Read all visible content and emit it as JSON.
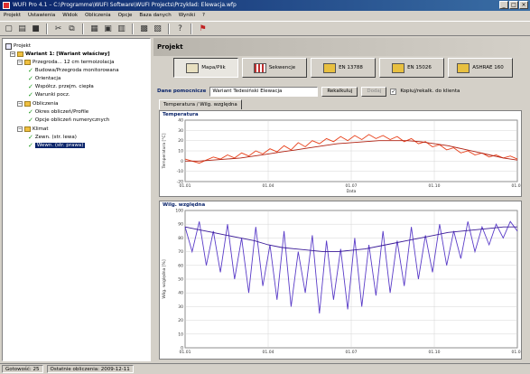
{
  "window": {
    "title": "WUFI Pro 4.1 – C:\\Programme\\WUFI Software\\WUFI Projects\\Przykład: Elewacja.wfp"
  },
  "menu": [
    "Projekt",
    "Ustawienia",
    "Widok",
    "Obliczenia",
    "Opcje",
    "Baza danych",
    "Wyniki",
    "?"
  ],
  "toolbar": [
    "new-icon",
    "open-icon",
    "save-icon",
    "cut-icon",
    "copy-icon",
    "paste-icon",
    "calc-icon",
    "chart-icon",
    "help-icon",
    "pin-icon"
  ],
  "tree": {
    "root": "Projekt",
    "case": "Wariant 1: [Wariant właściwy]",
    "construction": "Przegroda... 12 cm termoizolacja",
    "construction_items": [
      "Budowa/Przegroda monitorowana",
      "Orientacja",
      "Współcz. przejm. ciepła",
      "Warunki pocz."
    ],
    "calc": "Obliczenia",
    "calc_items": [
      "Okres obliczeń/Profile",
      "Opcje obliczeń numerycznych"
    ],
    "climate": "Klimat",
    "climate_items": [
      "Zewn. (str. lewa)",
      "Wewn. (str. prawa)"
    ]
  },
  "panel": {
    "title": "Projekt",
    "tabs": [
      "Mapa/Plik",
      "Sekwencje",
      "EN 13788",
      "EN 15026",
      "ASHRAE 160"
    ],
    "name_label": "Dane pomocnicze",
    "name_value": "Wariant Tedesiński Elewacja",
    "button_recalc": "Rekalkuluj",
    "button_add": "Dodaj",
    "checkbox_label": "Kopiuj/rekalk. do klienta",
    "subtab": "Temperatura / Wilg. względna"
  },
  "chart_data": [
    {
      "type": "line",
      "title": "Temperatura",
      "ylabel": "Temperatura [°C]",
      "xlabel": "Data",
      "x_ticks": [
        "01.01",
        "01.04",
        "01.07",
        "01.10",
        "01.01"
      ],
      "ylim": [
        -20,
        40
      ],
      "y_ticks": [
        -20,
        -10,
        0,
        10,
        20,
        30,
        40
      ],
      "series": [
        {
          "name": "",
          "color": "#e8401a",
          "values": [
            2,
            0,
            -2,
            1,
            4,
            2,
            6,
            3,
            8,
            5,
            10,
            7,
            12,
            9,
            15,
            11,
            18,
            14,
            20,
            17,
            22,
            19,
            24,
            20,
            25,
            21,
            26,
            22,
            25,
            21,
            24,
            19,
            22,
            17,
            19,
            14,
            16,
            11,
            13,
            8,
            10,
            6,
            8,
            4,
            6,
            3,
            5,
            2
          ]
        },
        {
          "name": "",
          "color": "#b02010",
          "values": [
            0,
            0,
            1,
            2,
            3,
            5,
            7,
            9,
            11,
            13,
            15,
            17,
            18,
            19,
            20,
            20,
            20,
            19,
            17,
            15,
            12,
            9,
            6,
            3,
            1
          ]
        }
      ]
    },
    {
      "type": "line",
      "title": "Wilg. względna",
      "ylabel": "Wilg. względna [%]",
      "x_ticks": [
        "01.01",
        "01.04",
        "01.07",
        "01.10",
        "01.01"
      ],
      "ylim": [
        0,
        100
      ],
      "y_ticks": [
        0,
        10,
        20,
        30,
        40,
        50,
        60,
        70,
        80,
        90,
        100
      ],
      "series": [
        {
          "name": "",
          "color": "#5a3cc8",
          "values": [
            88,
            70,
            92,
            60,
            85,
            55,
            90,
            50,
            80,
            40,
            88,
            45,
            75,
            35,
            85,
            30,
            70,
            40,
            82,
            25,
            78,
            35,
            72,
            28,
            80,
            30,
            75,
            38,
            85,
            40,
            78,
            45,
            88,
            50,
            82,
            55,
            90,
            60,
            85,
            65,
            92,
            70,
            88,
            75,
            90,
            80,
            92,
            85
          ]
        },
        {
          "name": "",
          "color": "#3a1a98",
          "values": [
            88,
            86,
            84,
            82,
            80,
            78,
            75,
            73,
            72,
            71,
            70,
            70,
            71,
            72,
            74,
            76,
            78,
            80,
            82,
            84,
            85,
            86,
            87,
            88,
            88
          ]
        }
      ]
    }
  ],
  "status": {
    "left": "Gotowość: 25",
    "mid": "Ostatnie obliczenia: 2009-12-11"
  }
}
